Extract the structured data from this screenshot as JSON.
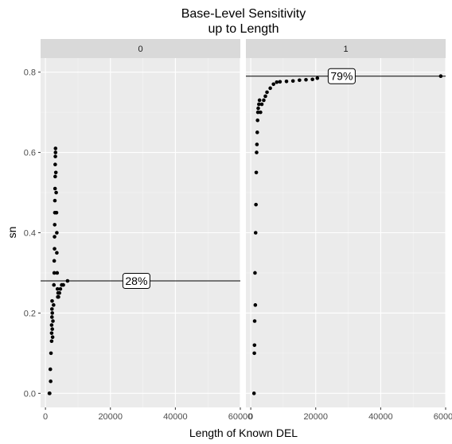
{
  "chart_data": {
    "type": "scatter",
    "title_lines": [
      "Base-Level Sensitivity",
      "up to Length"
    ],
    "xlabel": "Length of Known DEL",
    "ylabel": "sn",
    "xlim": [
      -1500,
      60000
    ],
    "ylim": [
      -0.035,
      0.835
    ],
    "x_ticks": [
      0,
      20000,
      40000,
      60000
    ],
    "y_ticks": [
      0.0,
      0.2,
      0.4,
      0.6,
      0.8
    ],
    "y_tick_labels": [
      "0.0",
      "0.2",
      "0.4",
      "0.6",
      "0.8"
    ],
    "grid": true,
    "panels": [
      {
        "facet": "0",
        "hline": 0.28,
        "annotation": {
          "text": "28%",
          "x": 28000,
          "y": 0.28
        },
        "points": [
          [
            1200,
            0.0
          ],
          [
            1300,
            0.0
          ],
          [
            1500,
            0.06
          ],
          [
            1600,
            0.03
          ],
          [
            1700,
            0.1
          ],
          [
            1900,
            0.13
          ],
          [
            1900,
            0.15
          ],
          [
            1900,
            0.17
          ],
          [
            2000,
            0.19
          ],
          [
            2000,
            0.21
          ],
          [
            2050,
            0.23
          ],
          [
            2100,
            0.2
          ],
          [
            2100,
            0.16
          ],
          [
            2200,
            0.14
          ],
          [
            2300,
            0.18
          ],
          [
            2500,
            0.22
          ],
          [
            2600,
            0.27
          ],
          [
            2700,
            0.3
          ],
          [
            2700,
            0.33
          ],
          [
            2800,
            0.36
          ],
          [
            2800,
            0.39
          ],
          [
            2850,
            0.42
          ],
          [
            2900,
            0.45
          ],
          [
            2900,
            0.48
          ],
          [
            2950,
            0.51
          ],
          [
            3000,
            0.54
          ],
          [
            3000,
            0.57
          ],
          [
            3050,
            0.59
          ],
          [
            3100,
            0.61
          ],
          [
            3100,
            0.6
          ],
          [
            3200,
            0.55
          ],
          [
            3300,
            0.5
          ],
          [
            3400,
            0.45
          ],
          [
            3500,
            0.4
          ],
          [
            3500,
            0.35
          ],
          [
            3600,
            0.3
          ],
          [
            3700,
            0.26
          ],
          [
            3800,
            0.24
          ],
          [
            3900,
            0.25
          ],
          [
            4000,
            0.24
          ],
          [
            4300,
            0.25
          ],
          [
            4600,
            0.26
          ],
          [
            5000,
            0.27
          ],
          [
            5500,
            0.27
          ],
          [
            6800,
            0.28
          ]
        ]
      },
      {
        "facet": "1",
        "hline": 0.79,
        "annotation": {
          "text": "79%",
          "x": 28000,
          "y": 0.79
        },
        "points": [
          [
            1000,
            0.0
          ],
          [
            1100,
            0.1
          ],
          [
            1150,
            0.12
          ],
          [
            1200,
            0.18
          ],
          [
            1300,
            0.3
          ],
          [
            1400,
            0.22
          ],
          [
            1500,
            0.4
          ],
          [
            1600,
            0.47
          ],
          [
            1700,
            0.55
          ],
          [
            1800,
            0.6
          ],
          [
            1900,
            0.62
          ],
          [
            2000,
            0.65
          ],
          [
            2100,
            0.68
          ],
          [
            2200,
            0.7
          ],
          [
            2300,
            0.71
          ],
          [
            2500,
            0.72
          ],
          [
            2700,
            0.73
          ],
          [
            3000,
            0.7
          ],
          [
            3400,
            0.72
          ],
          [
            4000,
            0.73
          ],
          [
            4500,
            0.74
          ],
          [
            5000,
            0.75
          ],
          [
            6000,
            0.76
          ],
          [
            7000,
            0.77
          ],
          [
            8000,
            0.775
          ],
          [
            9000,
            0.776
          ],
          [
            11000,
            0.777
          ],
          [
            13000,
            0.778
          ],
          [
            15000,
            0.78
          ],
          [
            17000,
            0.781
          ],
          [
            19000,
            0.782
          ],
          [
            20500,
            0.785
          ],
          [
            58500,
            0.79
          ]
        ]
      }
    ]
  }
}
